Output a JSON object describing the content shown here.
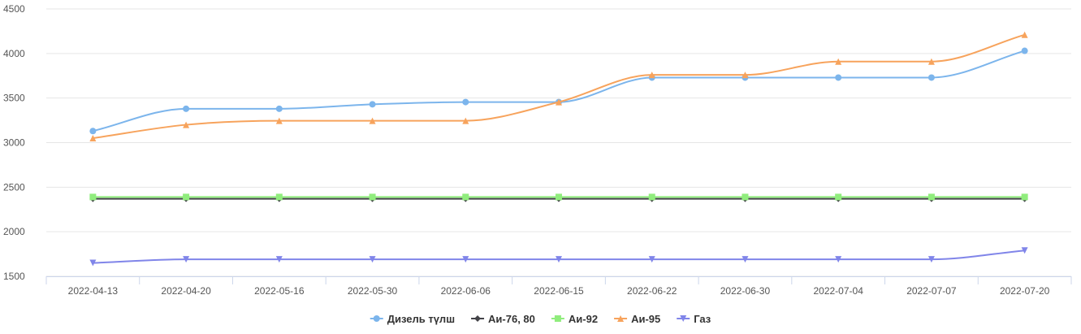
{
  "chart_data": {
    "type": "line",
    "title": "",
    "xlabel": "",
    "ylabel": "",
    "categories": [
      "2022-04-13",
      "2022-04-20",
      "2022-05-16",
      "2022-05-30",
      "2022-06-06",
      "2022-06-15",
      "2022-06-22",
      "2022-06-30",
      "2022-07-04",
      "2022-07-07",
      "2022-07-20"
    ],
    "ylim": [
      1500,
      4500
    ],
    "yticks": [
      1500,
      2000,
      2500,
      3000,
      3500,
      4000,
      4500
    ],
    "grid": "horizontal",
    "smooth": true,
    "legend_position": "bottom-center",
    "series": [
      {
        "name": "Дизель түлш",
        "color": "#7cb5ec",
        "marker": "circle",
        "values": [
          3130,
          3380,
          3380,
          3430,
          3455,
          3455,
          3730,
          3730,
          3730,
          3730,
          4030
        ]
      },
      {
        "name": "Аи-76, 80",
        "color": "#434348",
        "marker": "diamond",
        "values": [
          2370,
          2370,
          2370,
          2370,
          2370,
          2370,
          2370,
          2370,
          2370,
          2370,
          2370
        ]
      },
      {
        "name": "Аи-92",
        "color": "#90ed7d",
        "marker": "square",
        "values": [
          2390,
          2390,
          2390,
          2390,
          2390,
          2390,
          2390,
          2390,
          2390,
          2390,
          2390
        ]
      },
      {
        "name": "Аи-95",
        "color": "#f7a35c",
        "marker": "triangle",
        "values": [
          3050,
          3200,
          3245,
          3245,
          3245,
          3455,
          3760,
          3760,
          3910,
          3910,
          4210
        ]
      },
      {
        "name": "Газ",
        "color": "#8085e9",
        "marker": "triangle-down",
        "values": [
          1650,
          1690,
          1690,
          1690,
          1690,
          1690,
          1690,
          1690,
          1690,
          1690,
          1790
        ]
      }
    ]
  }
}
